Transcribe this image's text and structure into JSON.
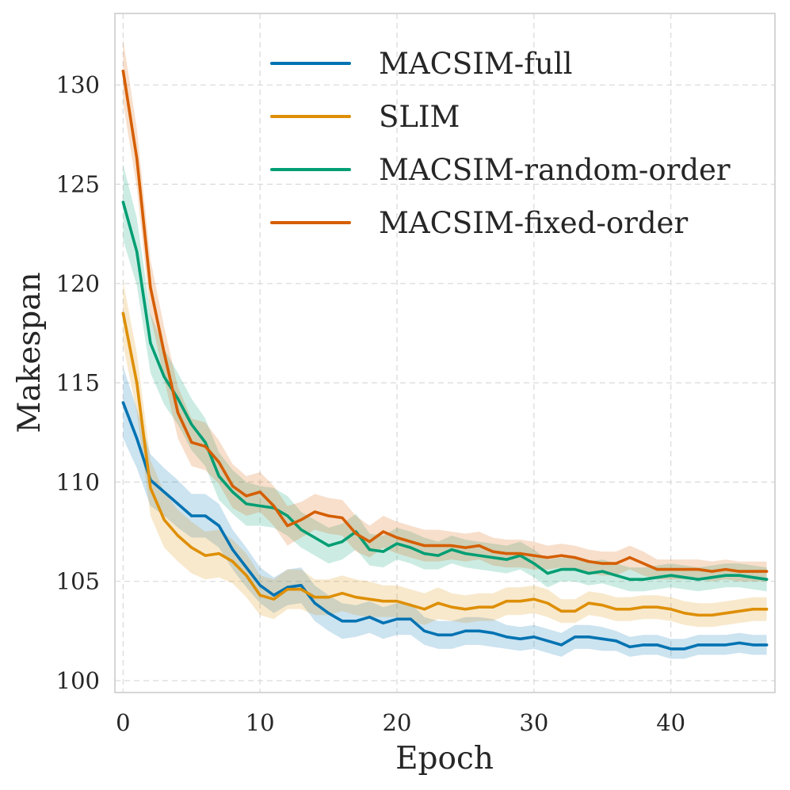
{
  "chart_data": {
    "type": "line",
    "title": "",
    "xlabel": "Epoch",
    "ylabel": "Makespan",
    "xlim": [
      -0.6,
      47.6
    ],
    "ylim": [
      99.4,
      133.6
    ],
    "xticks": [
      0,
      10,
      20,
      30,
      40
    ],
    "yticks": [
      100,
      105,
      110,
      115,
      120,
      125,
      130
    ],
    "grid": true,
    "legend_position": "top-right",
    "x": [
      0,
      1,
      2,
      3,
      4,
      5,
      6,
      7,
      8,
      9,
      10,
      11,
      12,
      13,
      14,
      15,
      16,
      17,
      18,
      19,
      20,
      21,
      22,
      23,
      24,
      25,
      26,
      27,
      28,
      29,
      30,
      31,
      32,
      33,
      34,
      35,
      36,
      37,
      38,
      39,
      40,
      41,
      42,
      43,
      44,
      45,
      46,
      47
    ],
    "series": [
      {
        "name": "MACSIM-full",
        "color": "#0173b2",
        "values": [
          114.0,
          112.2,
          110.1,
          109.5,
          108.9,
          108.3,
          108.3,
          107.8,
          106.6,
          105.7,
          104.8,
          104.3,
          104.7,
          104.8,
          103.9,
          103.4,
          103.0,
          103.0,
          103.2,
          102.9,
          103.1,
          103.1,
          102.5,
          102.3,
          102.3,
          102.5,
          102.5,
          102.4,
          102.2,
          102.1,
          102.2,
          102.0,
          101.8,
          102.2,
          102.2,
          102.1,
          102.0,
          101.7,
          101.8,
          101.8,
          101.6,
          101.6,
          101.8,
          101.8,
          101.8,
          101.9,
          101.8,
          101.8
        ],
        "band": [
          1.8,
          1.5,
          1.3,
          1.2,
          1.2,
          1.1,
          1.1,
          1.1,
          1.0,
          1.0,
          0.9,
          0.9,
          0.9,
          0.9,
          0.9,
          0.9,
          0.9,
          0.8,
          0.8,
          0.8,
          0.8,
          0.8,
          0.7,
          0.7,
          0.7,
          0.7,
          0.7,
          0.7,
          0.6,
          0.6,
          0.6,
          0.6,
          0.6,
          0.6,
          0.6,
          0.6,
          0.5,
          0.5,
          0.5,
          0.5,
          0.5,
          0.5,
          0.5,
          0.5,
          0.5,
          0.5,
          0.5,
          0.5
        ]
      },
      {
        "name": "SLIM",
        "color": "#de8f05",
        "values": [
          118.5,
          115.0,
          109.7,
          108.1,
          107.3,
          106.7,
          106.3,
          106.4,
          106.0,
          105.3,
          104.3,
          104.1,
          104.6,
          104.6,
          104.2,
          104.2,
          104.4,
          104.2,
          104.1,
          104.0,
          104.0,
          103.8,
          103.6,
          103.9,
          103.7,
          103.6,
          103.7,
          103.7,
          104.0,
          104.0,
          104.1,
          103.9,
          103.5,
          103.5,
          103.9,
          103.8,
          103.6,
          103.6,
          103.7,
          103.7,
          103.6,
          103.4,
          103.3,
          103.3,
          103.4,
          103.5,
          103.6,
          103.6
        ],
        "band": [
          1.6,
          1.5,
          1.4,
          1.4,
          1.3,
          1.3,
          1.2,
          1.2,
          1.1,
          1.1,
          1.0,
          1.0,
          1.0,
          1.0,
          0.9,
          0.9,
          0.9,
          0.9,
          0.9,
          0.8,
          0.8,
          0.8,
          0.8,
          0.8,
          0.7,
          0.7,
          0.7,
          0.7,
          0.7,
          0.7,
          0.7,
          0.7,
          0.6,
          0.6,
          0.6,
          0.6,
          0.6,
          0.6,
          0.6,
          0.6,
          0.6,
          0.6,
          0.6,
          0.6,
          0.6,
          0.6,
          0.6,
          0.6
        ]
      },
      {
        "name": "MACSIM-random-order",
        "color": "#029e73",
        "values": [
          124.1,
          121.6,
          117.0,
          115.3,
          114.2,
          112.9,
          112.0,
          110.3,
          109.5,
          108.9,
          108.8,
          108.7,
          108.3,
          107.6,
          107.2,
          106.8,
          107.0,
          107.5,
          106.6,
          106.5,
          106.9,
          106.7,
          106.4,
          106.3,
          106.6,
          106.4,
          106.3,
          106.2,
          106.1,
          106.3,
          105.9,
          105.4,
          105.6,
          105.6,
          105.4,
          105.5,
          105.3,
          105.1,
          105.1,
          105.2,
          105.3,
          105.2,
          105.1,
          105.2,
          105.3,
          105.3,
          105.2,
          105.1
        ],
        "band": [
          1.9,
          1.7,
          1.5,
          1.4,
          1.3,
          1.3,
          1.2,
          1.2,
          1.1,
          1.1,
          1.0,
          1.0,
          1.0,
          0.9,
          0.9,
          0.9,
          0.9,
          0.9,
          0.8,
          0.8,
          0.8,
          0.8,
          0.8,
          0.7,
          0.7,
          0.7,
          0.7,
          0.7,
          0.7,
          0.7,
          0.7,
          0.7,
          0.6,
          0.6,
          0.6,
          0.6,
          0.6,
          0.6,
          0.6,
          0.6,
          0.6,
          0.6,
          0.6,
          0.6,
          0.6,
          0.6,
          0.6,
          0.6
        ]
      },
      {
        "name": "MACSIM-fixed-order",
        "color": "#d55e00",
        "values": [
          130.7,
          126.3,
          119.8,
          116.5,
          113.5,
          112.0,
          111.8,
          111.0,
          109.8,
          109.3,
          109.5,
          108.8,
          107.8,
          108.1,
          108.5,
          108.3,
          108.2,
          107.4,
          107.0,
          107.5,
          107.2,
          107.0,
          106.8,
          106.8,
          106.8,
          106.7,
          106.8,
          106.5,
          106.4,
          106.4,
          106.3,
          106.2,
          106.3,
          106.2,
          106.0,
          105.9,
          105.9,
          106.2,
          105.9,
          105.6,
          105.6,
          105.6,
          105.6,
          105.5,
          105.6,
          105.5,
          105.5,
          105.5
        ],
        "band": [
          1.6,
          1.5,
          1.4,
          1.3,
          1.3,
          1.2,
          1.2,
          1.1,
          1.1,
          1.0,
          1.0,
          1.0,
          1.0,
          0.9,
          0.9,
          0.9,
          0.9,
          0.9,
          0.8,
          0.8,
          0.8,
          0.8,
          0.8,
          0.8,
          0.7,
          0.7,
          0.7,
          0.7,
          0.7,
          0.7,
          0.7,
          0.6,
          0.6,
          0.6,
          0.6,
          0.6,
          0.6,
          0.6,
          0.6,
          0.5,
          0.5,
          0.5,
          0.5,
          0.5,
          0.5,
          0.5,
          0.5,
          0.5
        ]
      }
    ]
  }
}
